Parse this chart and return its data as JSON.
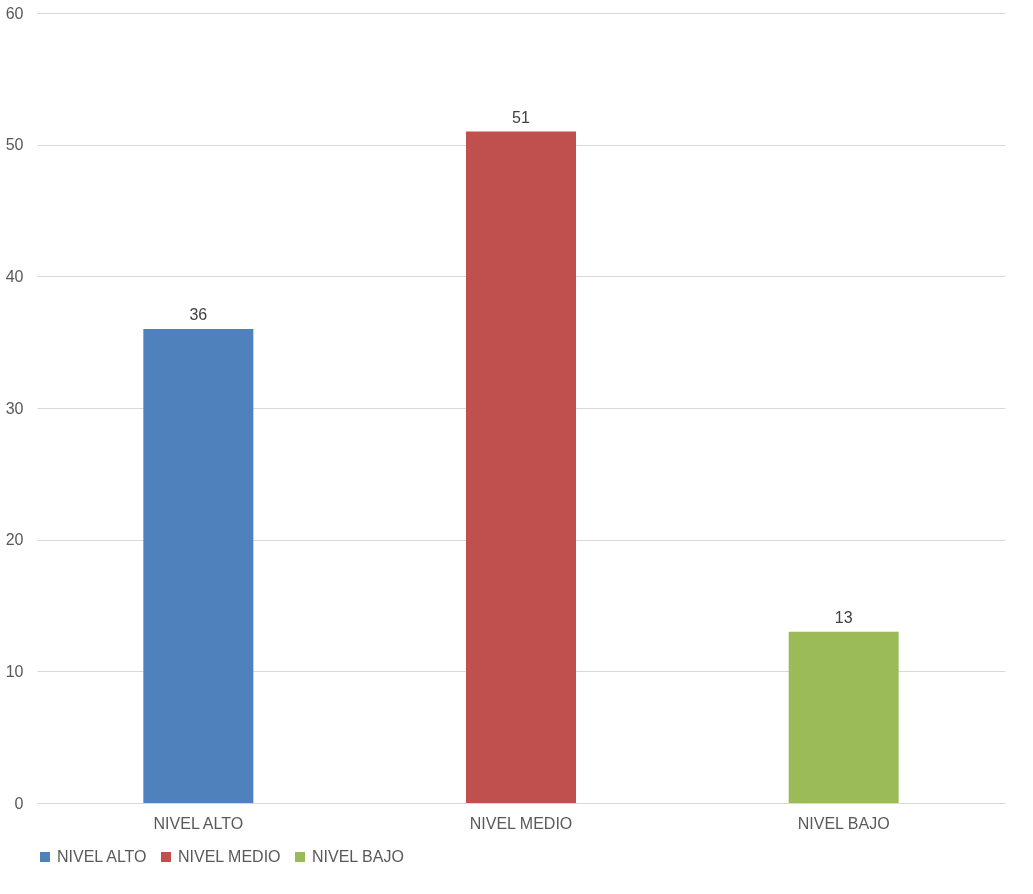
{
  "chart_data": {
    "type": "bar",
    "categories": [
      "NIVEL ALTO",
      "NIVEL MEDIO",
      "NIVEL BAJO"
    ],
    "series": [
      {
        "name": "NIVEL ALTO",
        "color": "#4f81bd",
        "values": [
          36,
          null,
          null
        ]
      },
      {
        "name": "NIVEL MEDIO",
        "color": "#c0504d",
        "values": [
          null,
          51,
          null
        ]
      },
      {
        "name": "NIVEL BAJO",
        "color": "#9bbb59",
        "values": [
          null,
          null,
          13
        ]
      }
    ],
    "ylim": [
      0,
      60
    ],
    "yticks": [
      0,
      10,
      20,
      30,
      40,
      50,
      60
    ],
    "grid": "y",
    "legend": "bottom",
    "data_labels": true
  }
}
